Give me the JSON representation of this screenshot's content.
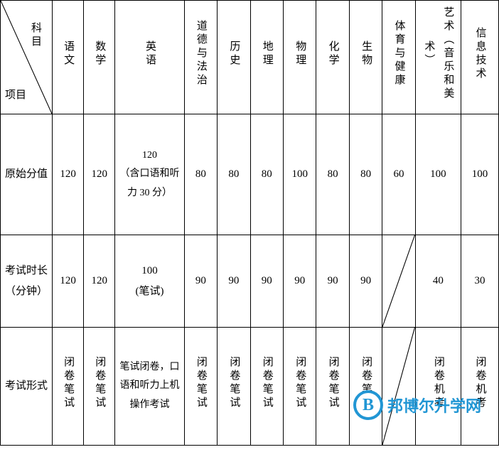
{
  "table": {
    "header": {
      "diag_top": "科目",
      "diag_bottom": "项目",
      "subjects": [
        "语文",
        "数学",
        "英语",
        "道德与法治",
        "历史",
        "地理",
        "物理",
        "化学",
        "生物",
        "体育与健康",
        "艺术（音乐和美术）",
        "信息技术"
      ]
    },
    "rows": [
      {
        "label": "原始分值",
        "cells": [
          "120",
          "120",
          "120\n（含口语和听力 30 分）",
          "80",
          "80",
          "80",
          "100",
          "80",
          "80",
          "60",
          "100",
          "100"
        ]
      },
      {
        "label": "考试时长（分钟）",
        "cells": [
          "120",
          "120",
          "100\n(笔试)",
          "90",
          "90",
          "90",
          "90",
          "90",
          "90",
          "",
          "40",
          "30"
        ],
        "diag_cols": [
          9
        ]
      },
      {
        "label": "考试形式",
        "cells": [
          "闭卷笔试",
          "闭卷笔试",
          "笔试闭卷，口语和听力上机操作考试",
          "闭卷笔试",
          "闭卷笔试",
          "闭卷笔试",
          "闭卷笔试",
          "闭卷笔试",
          "闭卷笔试",
          "",
          "闭卷机考",
          "闭卷机考"
        ],
        "diag_cols": [
          9
        ]
      }
    ]
  },
  "watermark": {
    "letter": "B",
    "text": "邦博尔升学网"
  },
  "style": {
    "text_color": "#000000",
    "border_color": "#000000",
    "bg_color": "#ffffff",
    "brand_color": "#2196d4",
    "font_size": 15
  }
}
